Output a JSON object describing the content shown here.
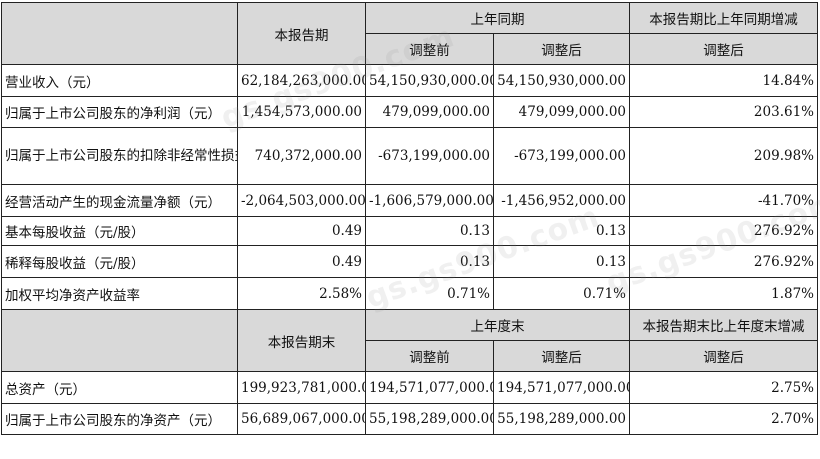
{
  "headers": {
    "current_period": "本报告期",
    "prior_period": "上年同期",
    "change_vs_prior": "本报告期比上年同期增减",
    "before_adjustment": "调整前",
    "after_adjustment": "调整后",
    "after_adjustment_change": "调整后"
  },
  "rows_top": [
    {
      "label": "营业收入（元）",
      "current": "62,184,263,000.00",
      "prior_before": "54,150,930,000.00",
      "prior_after": "54,150,930,000.00",
      "change": "14.84%"
    },
    {
      "label": "归属于上市公司股东的净利润（元）",
      "current": "1,454,573,000.00",
      "prior_before": "479,099,000.00",
      "prior_after": "479,099,000.00",
      "change": "203.61%"
    },
    {
      "label": "归属于上市公司股东的扣除非经常性损益的净利润（元）",
      "current": "740,372,000.00",
      "prior_before": "-673,199,000.00",
      "prior_after": "-673,199,000.00",
      "change": "209.98%"
    },
    {
      "label": "经营活动产生的现金流量净额（元）",
      "current": "-2,064,503,000.00",
      "prior_before": "-1,606,579,000.00",
      "prior_after": "-1,456,952,000.00",
      "change": "-41.70%"
    },
    {
      "label": "基本每股收益（元/股）",
      "current": "0.49",
      "prior_before": "0.13",
      "prior_after": "0.13",
      "change": "276.92%"
    },
    {
      "label": "稀释每股收益（元/股）",
      "current": "0.49",
      "prior_before": "0.13",
      "prior_after": "0.13",
      "change": "276.92%"
    },
    {
      "label": "加权平均净资产收益率",
      "current": "2.58%",
      "prior_before": "0.71%",
      "prior_after": "0.71%",
      "change": "1.87%"
    }
  ],
  "headers2": {
    "current_period_end": "本报告期末",
    "prior_year_end": "上年度末",
    "change_vs_prior_year_end": "本报告期末比上年度末增减",
    "before_adjustment": "调整前",
    "after_adjustment": "调整后",
    "after_adjustment_change": "调整后"
  },
  "rows_bottom": [
    {
      "label": "总资产（元）",
      "current": "199,923,781,000.00",
      "prior_before": "194,571,077,000.00",
      "prior_after": "194,571,077,000.00",
      "change": "2.75%"
    },
    {
      "label": "归属于上市公司股东的净资产（元）",
      "current": "56,689,067,000.00",
      "prior_before": "55,198,289,000.00",
      "prior_after": "55,198,289,000.00",
      "change": "2.70%"
    }
  ],
  "watermark": "gs.gs900.com"
}
